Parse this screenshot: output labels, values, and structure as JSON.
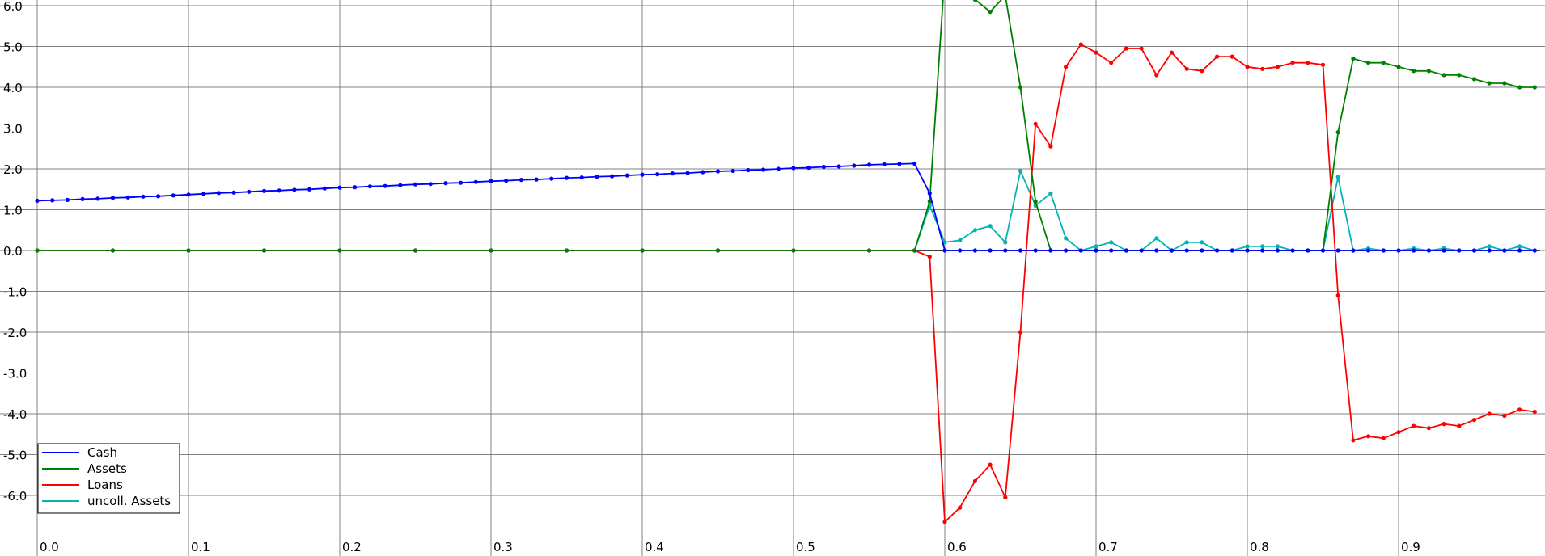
{
  "chart_data": {
    "type": "line",
    "grid": true,
    "legend_position": "bottom-left",
    "xlim": [
      0.0,
      0.99
    ],
    "ylim": [
      -6.5,
      6.5
    ],
    "x_ticks": [
      "0.0",
      "0.1",
      "0.2",
      "0.3",
      "0.4",
      "0.5",
      "0.6",
      "0.7",
      "0.8",
      "0.9"
    ],
    "y_ticks": [
      "6.0",
      "5.0",
      "4.0",
      "3.0",
      "2.0",
      "1.0",
      "0.0",
      "-1.0",
      "-2.0",
      "-3.0",
      "-4.0",
      "-5.0",
      "-6.0"
    ],
    "series": [
      {
        "name": "Cash",
        "color": "#0000ff",
        "points": [
          [
            0.0,
            1.22
          ],
          [
            0.01,
            1.23
          ],
          [
            0.02,
            1.24
          ],
          [
            0.03,
            1.26
          ],
          [
            0.04,
            1.27
          ],
          [
            0.05,
            1.29
          ],
          [
            0.06,
            1.3
          ],
          [
            0.07,
            1.32
          ],
          [
            0.08,
            1.33
          ],
          [
            0.09,
            1.35
          ],
          [
            0.1,
            1.37
          ],
          [
            0.11,
            1.39
          ],
          [
            0.12,
            1.41
          ],
          [
            0.13,
            1.42
          ],
          [
            0.14,
            1.44
          ],
          [
            0.15,
            1.46
          ],
          [
            0.16,
            1.47
          ],
          [
            0.17,
            1.49
          ],
          [
            0.18,
            1.5
          ],
          [
            0.19,
            1.52
          ],
          [
            0.2,
            1.54
          ],
          [
            0.21,
            1.55
          ],
          [
            0.22,
            1.57
          ],
          [
            0.23,
            1.58
          ],
          [
            0.24,
            1.6
          ],
          [
            0.25,
            1.62
          ],
          [
            0.26,
            1.63
          ],
          [
            0.27,
            1.65
          ],
          [
            0.28,
            1.66
          ],
          [
            0.29,
            1.68
          ],
          [
            0.3,
            1.7
          ],
          [
            0.31,
            1.71
          ],
          [
            0.32,
            1.73
          ],
          [
            0.33,
            1.74
          ],
          [
            0.34,
            1.76
          ],
          [
            0.35,
            1.78
          ],
          [
            0.36,
            1.79
          ],
          [
            0.37,
            1.81
          ],
          [
            0.38,
            1.82
          ],
          [
            0.39,
            1.84
          ],
          [
            0.4,
            1.86
          ],
          [
            0.41,
            1.87
          ],
          [
            0.42,
            1.89
          ],
          [
            0.43,
            1.9
          ],
          [
            0.44,
            1.92
          ],
          [
            0.45,
            1.94
          ],
          [
            0.46,
            1.95
          ],
          [
            0.47,
            1.97
          ],
          [
            0.48,
            1.98
          ],
          [
            0.49,
            2.0
          ],
          [
            0.5,
            2.02
          ],
          [
            0.51,
            2.03
          ],
          [
            0.52,
            2.05
          ],
          [
            0.53,
            2.06
          ],
          [
            0.54,
            2.08
          ],
          [
            0.55,
            2.1
          ],
          [
            0.56,
            2.11
          ],
          [
            0.57,
            2.12
          ],
          [
            0.58,
            2.13
          ],
          [
            0.59,
            1.4
          ],
          [
            0.6,
            0.0
          ],
          [
            0.61,
            0.0
          ],
          [
            0.62,
            0.0
          ],
          [
            0.63,
            0.0
          ],
          [
            0.64,
            0.0
          ],
          [
            0.65,
            0.0
          ],
          [
            0.66,
            0.0
          ],
          [
            0.67,
            0.0
          ],
          [
            0.68,
            0.0
          ],
          [
            0.69,
            0.0
          ],
          [
            0.7,
            0.0
          ],
          [
            0.71,
            0.0
          ],
          [
            0.72,
            0.0
          ],
          [
            0.73,
            0.0
          ],
          [
            0.74,
            0.0
          ],
          [
            0.75,
            0.0
          ],
          [
            0.76,
            0.0
          ],
          [
            0.77,
            0.0
          ],
          [
            0.78,
            0.0
          ],
          [
            0.79,
            0.0
          ],
          [
            0.8,
            0.0
          ],
          [
            0.81,
            0.0
          ],
          [
            0.82,
            0.0
          ],
          [
            0.83,
            0.0
          ],
          [
            0.84,
            0.0
          ],
          [
            0.85,
            0.0
          ],
          [
            0.86,
            0.0
          ],
          [
            0.87,
            0.0
          ],
          [
            0.88,
            0.0
          ],
          [
            0.89,
            0.0
          ],
          [
            0.9,
            0.0
          ],
          [
            0.91,
            0.0
          ],
          [
            0.92,
            0.0
          ],
          [
            0.93,
            0.0
          ],
          [
            0.94,
            0.0
          ],
          [
            0.95,
            0.0
          ],
          [
            0.96,
            0.0
          ],
          [
            0.97,
            0.0
          ],
          [
            0.98,
            0.0
          ],
          [
            0.99,
            0.0
          ]
        ]
      },
      {
        "name": "Assets",
        "color": "#008000",
        "points": [
          [
            0.0,
            0.0
          ],
          [
            0.05,
            0.0
          ],
          [
            0.1,
            0.0
          ],
          [
            0.15,
            0.0
          ],
          [
            0.2,
            0.0
          ],
          [
            0.25,
            0.0
          ],
          [
            0.3,
            0.0
          ],
          [
            0.35,
            0.0
          ],
          [
            0.4,
            0.0
          ],
          [
            0.45,
            0.0
          ],
          [
            0.5,
            0.0
          ],
          [
            0.55,
            0.0
          ],
          [
            0.58,
            0.0
          ],
          [
            0.59,
            1.2
          ],
          [
            0.6,
            6.8
          ],
          [
            0.61,
            6.6
          ],
          [
            0.62,
            6.15
          ],
          [
            0.63,
            5.85
          ],
          [
            0.64,
            6.25
          ],
          [
            0.65,
            4.0
          ],
          [
            0.66,
            1.2
          ],
          [
            0.67,
            0.0
          ],
          [
            0.7,
            0.0
          ],
          [
            0.75,
            0.0
          ],
          [
            0.8,
            0.0
          ],
          [
            0.85,
            0.0
          ],
          [
            0.86,
            2.9
          ],
          [
            0.87,
            4.7
          ],
          [
            0.88,
            4.6
          ],
          [
            0.89,
            4.6
          ],
          [
            0.9,
            4.5
          ],
          [
            0.91,
            4.4
          ],
          [
            0.92,
            4.4
          ],
          [
            0.93,
            4.3
          ],
          [
            0.94,
            4.3
          ],
          [
            0.95,
            4.2
          ],
          [
            0.96,
            4.1
          ],
          [
            0.97,
            4.1
          ],
          [
            0.98,
            4.0
          ],
          [
            0.99,
            4.0
          ]
        ]
      },
      {
        "name": "Loans",
        "color": "#ff0000",
        "points": [
          [
            0.0,
            0.0
          ],
          [
            0.05,
            0.0
          ],
          [
            0.1,
            0.0
          ],
          [
            0.15,
            0.0
          ],
          [
            0.2,
            0.0
          ],
          [
            0.25,
            0.0
          ],
          [
            0.3,
            0.0
          ],
          [
            0.35,
            0.0
          ],
          [
            0.4,
            0.0
          ],
          [
            0.45,
            0.0
          ],
          [
            0.5,
            0.0
          ],
          [
            0.55,
            0.0
          ],
          [
            0.58,
            0.0
          ],
          [
            0.59,
            -0.15
          ],
          [
            0.6,
            -6.65
          ],
          [
            0.61,
            -6.3
          ],
          [
            0.62,
            -5.65
          ],
          [
            0.63,
            -5.25
          ],
          [
            0.64,
            -6.05
          ],
          [
            0.65,
            -2.0
          ],
          [
            0.66,
            3.1
          ],
          [
            0.67,
            2.55
          ],
          [
            0.68,
            4.5
          ],
          [
            0.69,
            5.05
          ],
          [
            0.7,
            4.85
          ],
          [
            0.71,
            4.6
          ],
          [
            0.72,
            4.95
          ],
          [
            0.73,
            4.95
          ],
          [
            0.74,
            4.3
          ],
          [
            0.75,
            4.85
          ],
          [
            0.76,
            4.45
          ],
          [
            0.77,
            4.4
          ],
          [
            0.78,
            4.75
          ],
          [
            0.79,
            4.75
          ],
          [
            0.8,
            4.5
          ],
          [
            0.81,
            4.45
          ],
          [
            0.82,
            4.5
          ],
          [
            0.83,
            4.6
          ],
          [
            0.84,
            4.6
          ],
          [
            0.85,
            4.55
          ],
          [
            0.86,
            -1.1
          ],
          [
            0.87,
            -4.65
          ],
          [
            0.88,
            -4.55
          ],
          [
            0.89,
            -4.6
          ],
          [
            0.9,
            -4.45
          ],
          [
            0.91,
            -4.3
          ],
          [
            0.92,
            -4.35
          ],
          [
            0.93,
            -4.25
          ],
          [
            0.94,
            -4.3
          ],
          [
            0.95,
            -4.15
          ],
          [
            0.96,
            -4.0
          ],
          [
            0.97,
            -4.05
          ],
          [
            0.98,
            -3.9
          ],
          [
            0.99,
            -3.95
          ]
        ]
      },
      {
        "name": "uncoll. Assets",
        "color": "#00b4b4",
        "points": [
          [
            0.0,
            0.0
          ],
          [
            0.05,
            0.0
          ],
          [
            0.1,
            0.0
          ],
          [
            0.15,
            0.0
          ],
          [
            0.2,
            0.0
          ],
          [
            0.25,
            0.0
          ],
          [
            0.3,
            0.0
          ],
          [
            0.35,
            0.0
          ],
          [
            0.4,
            0.0
          ],
          [
            0.45,
            0.0
          ],
          [
            0.5,
            0.0
          ],
          [
            0.55,
            0.0
          ],
          [
            0.58,
            0.0
          ],
          [
            0.59,
            1.1
          ],
          [
            0.6,
            0.2
          ],
          [
            0.61,
            0.25
          ],
          [
            0.62,
            0.5
          ],
          [
            0.63,
            0.6
          ],
          [
            0.64,
            0.2
          ],
          [
            0.65,
            1.95
          ],
          [
            0.66,
            1.1
          ],
          [
            0.67,
            1.4
          ],
          [
            0.68,
            0.3
          ],
          [
            0.69,
            0.0
          ],
          [
            0.7,
            0.1
          ],
          [
            0.71,
            0.2
          ],
          [
            0.72,
            0.0
          ],
          [
            0.73,
            0.0
          ],
          [
            0.74,
            0.3
          ],
          [
            0.75,
            0.0
          ],
          [
            0.76,
            0.2
          ],
          [
            0.77,
            0.2
          ],
          [
            0.78,
            0.0
          ],
          [
            0.79,
            0.0
          ],
          [
            0.8,
            0.1
          ],
          [
            0.81,
            0.1
          ],
          [
            0.82,
            0.1
          ],
          [
            0.83,
            0.0
          ],
          [
            0.84,
            0.0
          ],
          [
            0.85,
            0.0
          ],
          [
            0.86,
            1.8
          ],
          [
            0.87,
            0.0
          ],
          [
            0.88,
            0.05
          ],
          [
            0.89,
            0.0
          ],
          [
            0.9,
            0.0
          ],
          [
            0.91,
            0.05
          ],
          [
            0.92,
            0.0
          ],
          [
            0.93,
            0.05
          ],
          [
            0.94,
            0.0
          ],
          [
            0.95,
            0.0
          ],
          [
            0.96,
            0.1
          ],
          [
            0.97,
            0.0
          ],
          [
            0.98,
            0.1
          ],
          [
            0.99,
            0.0
          ]
        ]
      }
    ]
  }
}
